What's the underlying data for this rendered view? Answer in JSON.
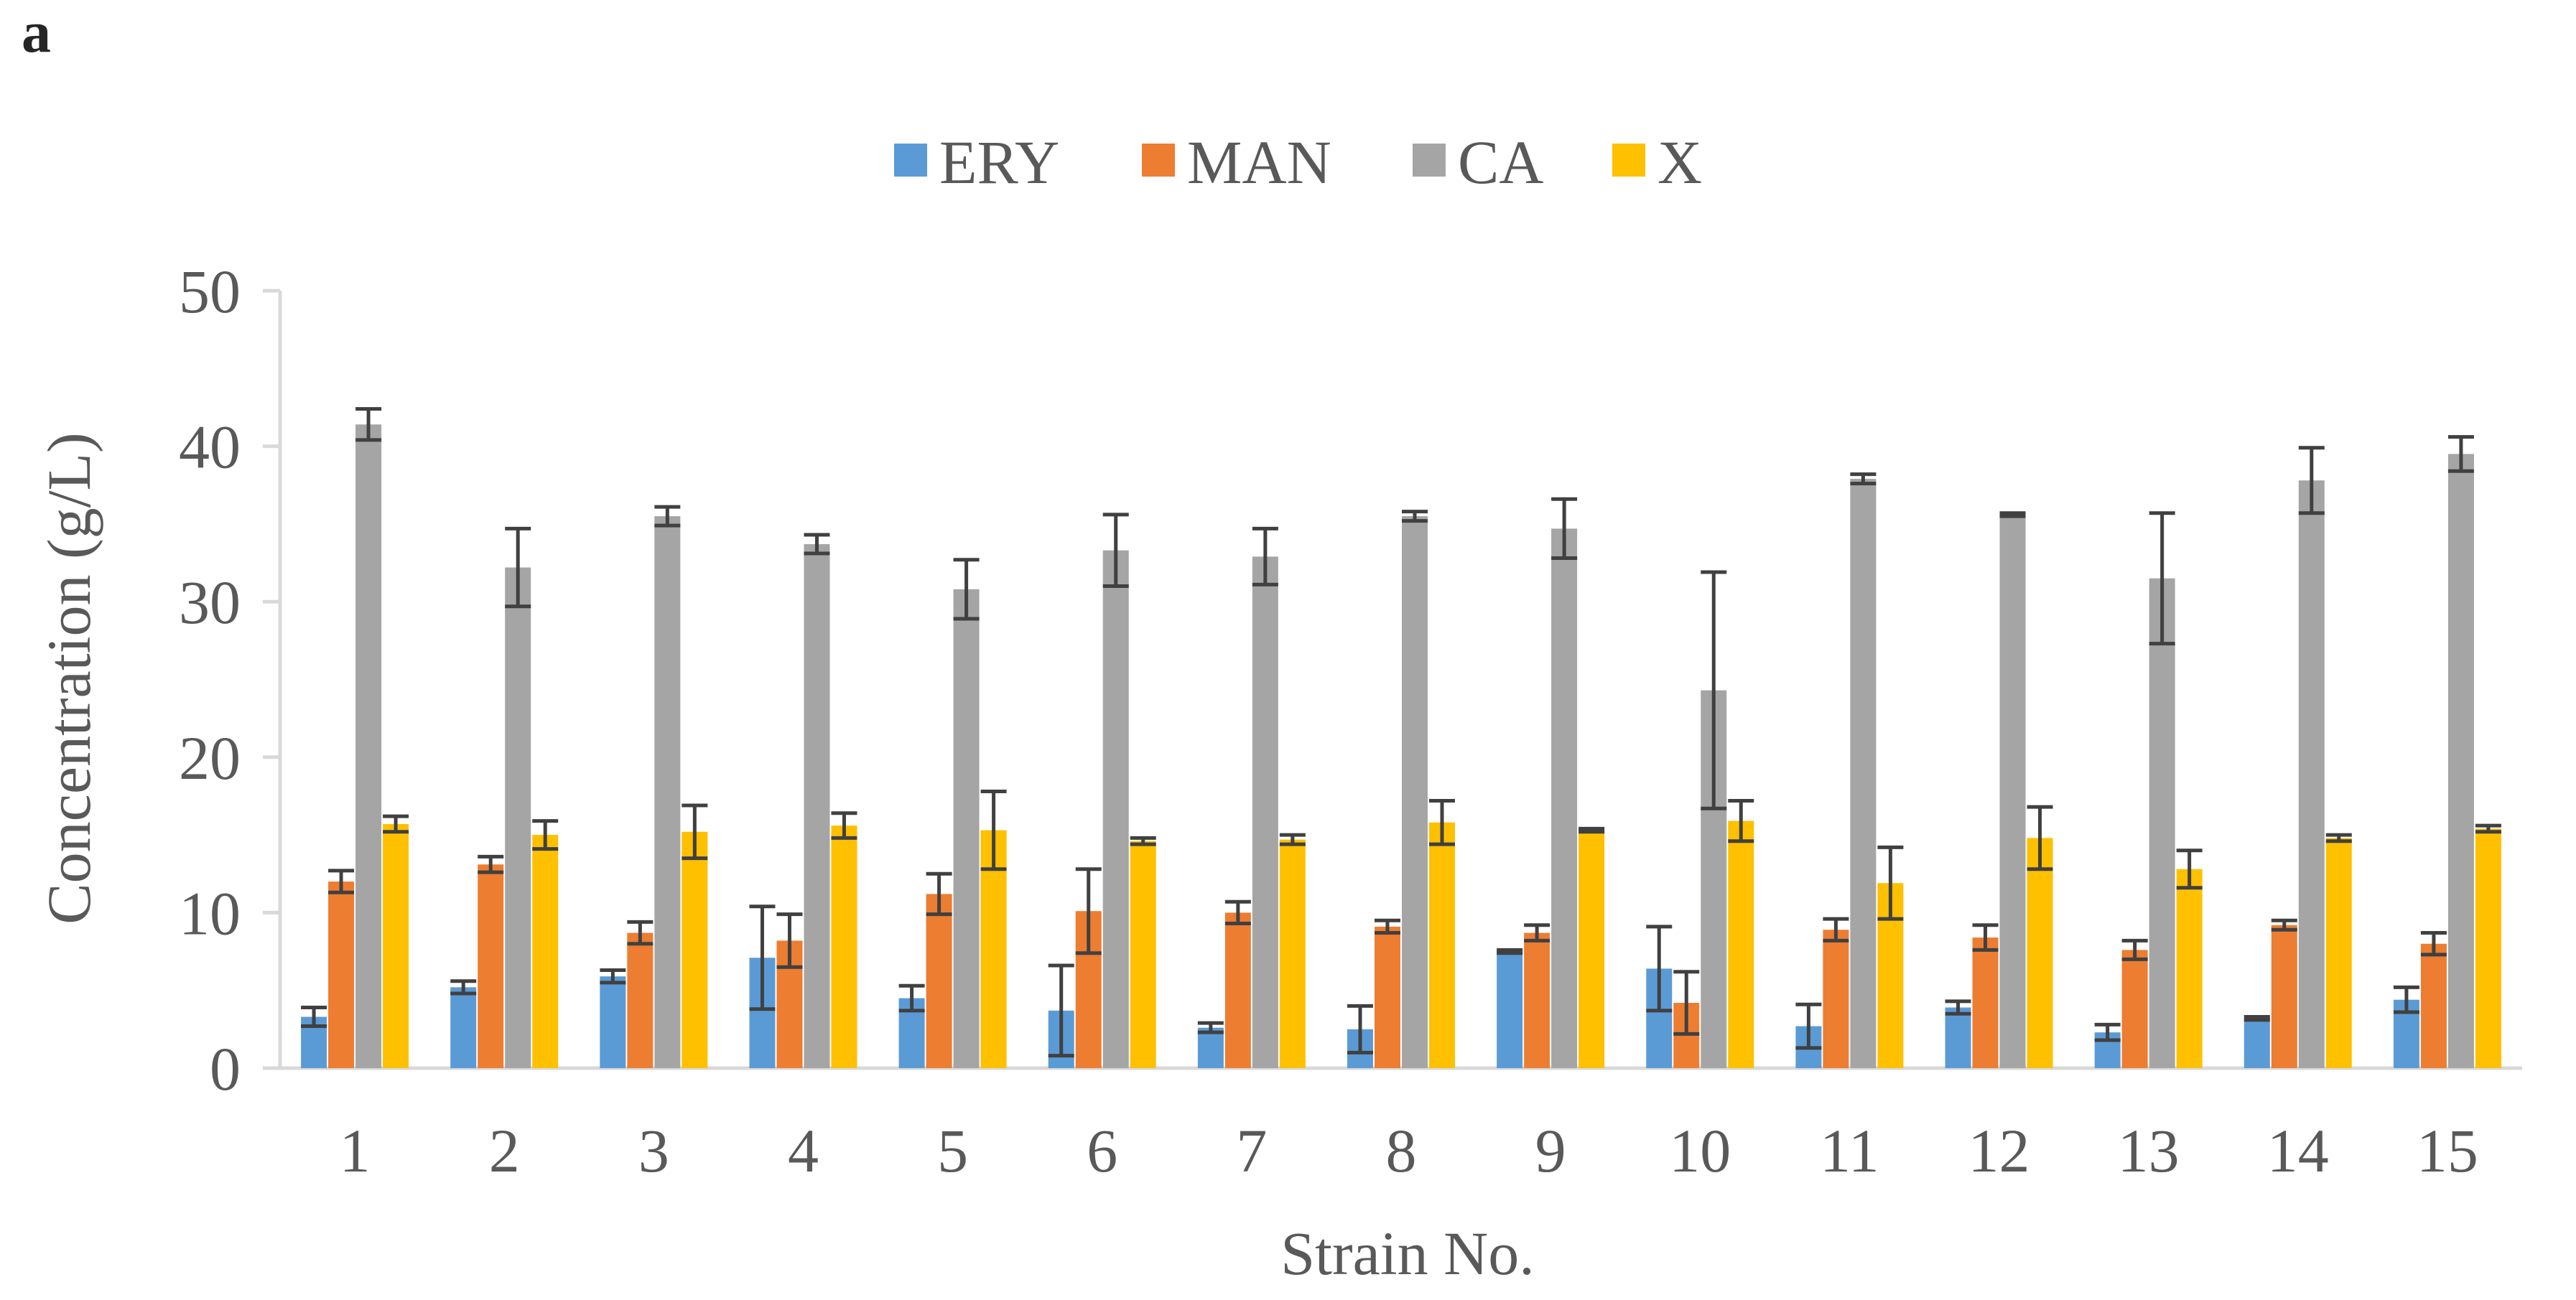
{
  "panel_label": "a",
  "chart_data": {
    "type": "bar",
    "title": "",
    "xlabel": "Strain No.",
    "ylabel": "Concentration (g/L)",
    "ylim": [
      0,
      50
    ],
    "yticks": [
      0,
      10,
      20,
      30,
      40,
      50
    ],
    "grid": false,
    "legend_position": "top-center",
    "categories": [
      "1",
      "2",
      "3",
      "4",
      "5",
      "6",
      "7",
      "8",
      "9",
      "10",
      "11",
      "12",
      "13",
      "14",
      "15"
    ],
    "series": [
      {
        "name": "ERY",
        "color": "#5B9BD5",
        "values": [
          3.3,
          5.2,
          5.9,
          7.1,
          4.5,
          3.7,
          2.6,
          2.5,
          7.5,
          6.4,
          2.7,
          3.9,
          2.3,
          3.2,
          4.4
        ],
        "errors": [
          0.6,
          0.4,
          0.4,
          3.3,
          0.8,
          2.9,
          0.3,
          1.5,
          0.1,
          2.7,
          1.4,
          0.4,
          0.5,
          0.1,
          0.8
        ]
      },
      {
        "name": "MAN",
        "color": "#ED7D31",
        "values": [
          12.0,
          13.1,
          8.7,
          8.2,
          11.2,
          10.1,
          10.0,
          9.1,
          8.7,
          4.2,
          8.9,
          8.4,
          7.6,
          9.2,
          8.0
        ],
        "errors": [
          0.7,
          0.5,
          0.7,
          1.7,
          1.3,
          2.7,
          0.7,
          0.4,
          0.5,
          2.0,
          0.7,
          0.8,
          0.6,
          0.3,
          0.7
        ]
      },
      {
        "name": "CA",
        "color": "#A5A5A5",
        "values": [
          41.4,
          32.2,
          35.5,
          33.7,
          30.8,
          33.3,
          32.9,
          35.5,
          34.7,
          24.3,
          37.9,
          35.6,
          31.5,
          37.8,
          39.5
        ],
        "errors": [
          1.0,
          2.5,
          0.6,
          0.6,
          1.9,
          2.3,
          1.8,
          0.3,
          1.9,
          7.6,
          0.3,
          0.1,
          4.2,
          2.1,
          1.1
        ]
      },
      {
        "name": "X",
        "color": "#FFC000",
        "values": [
          15.7,
          15.0,
          15.2,
          15.6,
          15.3,
          14.6,
          14.7,
          15.8,
          15.3,
          15.9,
          11.9,
          14.8,
          12.8,
          14.8,
          15.4
        ],
        "errors": [
          0.5,
          0.9,
          1.7,
          0.8,
          2.5,
          0.2,
          0.3,
          1.4,
          0.1,
          1.3,
          2.3,
          2.0,
          1.2,
          0.2,
          0.2
        ]
      }
    ]
  }
}
